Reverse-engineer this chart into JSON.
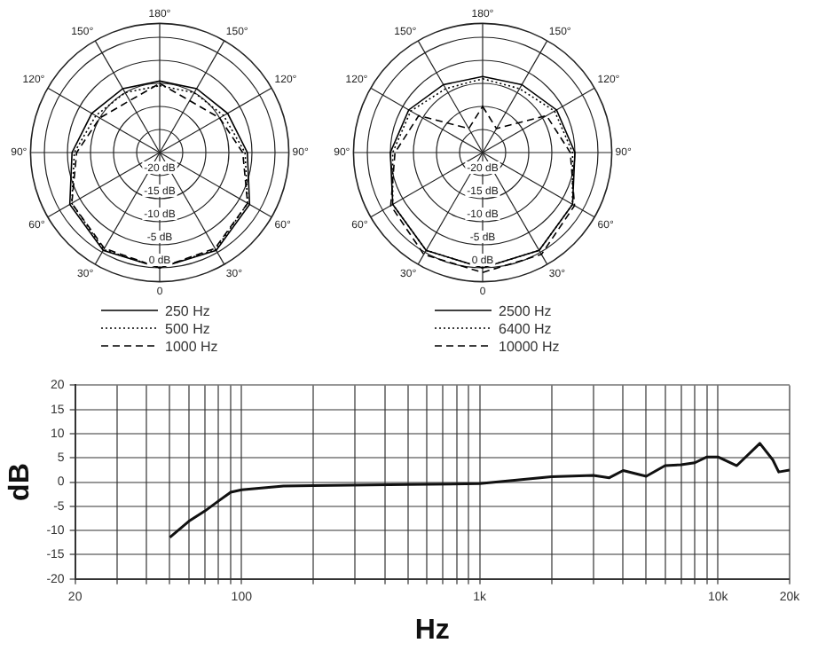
{
  "chart_data": [
    {
      "type": "radar",
      "categories": [
        "180°",
        "150°",
        "120°",
        "90°",
        "60°",
        "30°",
        "0",
        "30°",
        "60°",
        "90°",
        "120°",
        "150°"
      ],
      "ylim": [
        -25,
        3
      ],
      "yticks": [
        {
          "value": -20,
          "label": "-20 dB"
        },
        {
          "value": -15,
          "label": "-15 dB"
        },
        {
          "value": -10,
          "label": "-10 dB"
        },
        {
          "value": -5,
          "label": "-5 dB"
        },
        {
          "value": 0,
          "label": "0 dB"
        }
      ],
      "grid": true,
      "legend": "bottom",
      "marker": "none",
      "series": [
        {
          "name": "250 Hz",
          "color": "#000000",
          "line_style": "solid",
          "values": [
            -9.5,
            -9,
            -8,
            -6,
            -2.5,
            -0.5,
            0,
            -0.5,
            -2.5,
            -6,
            -8,
            -9
          ]
        },
        {
          "name": "500 Hz",
          "color": "#000000",
          "line_style": "dotted",
          "values": [
            -10.5,
            -10,
            -9,
            -6.5,
            -3,
            -0.7,
            0,
            -0.7,
            -3,
            -6.5,
            -9,
            -10
          ]
        },
        {
          "name": "1000 Hz",
          "color": "#000000",
          "line_style": "dashed",
          "values": [
            -10,
            -12,
            -10,
            -7,
            -3,
            -1,
            0,
            -1,
            -3,
            -7,
            -10,
            -12
          ]
        }
      ]
    },
    {
      "type": "radar",
      "categories": [
        "180°",
        "150°",
        "120°",
        "90°",
        "60°",
        "30°",
        "0",
        "30°",
        "60°",
        "90°",
        "120°",
        "150°"
      ],
      "ylim": [
        -25,
        3
      ],
      "yticks": [
        {
          "value": -20,
          "label": "-20 dB"
        },
        {
          "value": -15,
          "label": "-15 dB"
        },
        {
          "value": -10,
          "label": "-10 dB"
        },
        {
          "value": -5,
          "label": "-5 dB"
        },
        {
          "value": 0,
          "label": "0 dB"
        }
      ],
      "grid": true,
      "legend": "bottom",
      "marker": "none",
      "series": [
        {
          "name": "2500 Hz",
          "color": "#000000",
          "line_style": "solid",
          "values": [
            -8.5,
            -8,
            -6.5,
            -5,
            -2.5,
            -0.5,
            0,
            -0.5,
            -2.5,
            -5,
            -6.5,
            -8
          ]
        },
        {
          "name": "6400 Hz",
          "color": "#000000",
          "line_style": "dotted",
          "values": [
            -9,
            -9,
            -7,
            -5.5,
            -2.5,
            -0.5,
            0,
            -0.5,
            -2.5,
            -5.5,
            -7,
            -9
          ]
        },
        {
          "name": "10000 Hz",
          "color": "#000000",
          "line_style": "dashed",
          "values": [
            -15,
            -19,
            -9,
            -6,
            -2,
            0.5,
            1,
            0.5,
            -2,
            -6,
            -9,
            -19
          ]
        }
      ]
    },
    {
      "type": "line",
      "xlabel": "Hz",
      "ylabel": "dB",
      "log": "x",
      "xlim": [
        20,
        20000
      ],
      "ylim": [
        -20,
        20
      ],
      "grid": true,
      "legend": false,
      "marker": "none",
      "line_style": "solid",
      "yticks": [
        -20,
        -15,
        -10,
        -5,
        0,
        5,
        10,
        15,
        20
      ],
      "xticks": [
        20,
        {
          "value": 30,
          "label": null
        },
        {
          "value": 40,
          "label": null
        },
        {
          "value": 50,
          "label": null
        },
        {
          "value": 60,
          "label": null
        },
        {
          "value": 70,
          "label": null
        },
        {
          "value": 80,
          "label": null
        },
        {
          "value": 90,
          "label": null
        },
        100,
        {
          "value": 200,
          "label": null
        },
        {
          "value": 300,
          "label": null
        },
        {
          "value": 400,
          "label": null
        },
        {
          "value": 500,
          "label": null
        },
        {
          "value": 600,
          "label": null
        },
        {
          "value": 700,
          "label": null
        },
        {
          "value": 800,
          "label": null
        },
        {
          "value": 900,
          "label": null
        },
        {
          "value": 1000,
          "label": "1k"
        },
        {
          "value": 2000,
          "label": null
        },
        {
          "value": 3000,
          "label": null
        },
        {
          "value": 4000,
          "label": null
        },
        {
          "value": 5000,
          "label": null
        },
        {
          "value": 6000,
          "label": null
        },
        {
          "value": 7000,
          "label": null
        },
        {
          "value": 8000,
          "label": null
        },
        {
          "value": 9000,
          "label": null
        },
        {
          "value": 10000,
          "label": "10k"
        },
        {
          "value": 20000,
          "label": "20k"
        }
      ],
      "series": [
        {
          "color": "#111111",
          "x": [
            50,
            60,
            70,
            80,
            90,
            100,
            150,
            200,
            500,
            1000,
            2000,
            3000,
            3500,
            4000,
            5000,
            6000,
            7000,
            8000,
            9000,
            10000,
            12000,
            15000,
            17000,
            18000,
            20000
          ],
          "values": [
            -11.4,
            -8.1,
            -6,
            -3.9,
            -2.1,
            -1.6,
            -0.8,
            -0.7,
            -0.5,
            -0.3,
            1.1,
            1.4,
            0.9,
            2.4,
            1.2,
            3.4,
            3.6,
            4,
            5.2,
            5.2,
            3.4,
            8,
            4.6,
            2.1,
            2.5
          ]
        }
      ]
    }
  ]
}
